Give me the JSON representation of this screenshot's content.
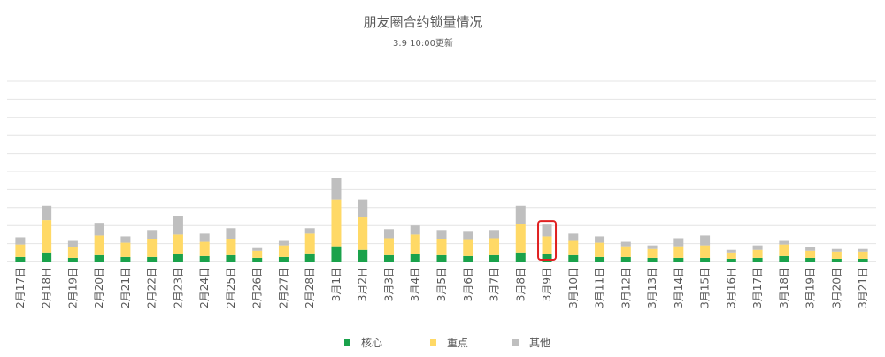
{
  "chart_data": {
    "type": "bar",
    "stacked": true,
    "title": "朋友圈合约锁量情况",
    "subtitle": "3.9 10:00更新",
    "categories": [
      "2月17日",
      "2月18日",
      "2月19日",
      "2月20日",
      "2月21日",
      "2月22日",
      "2月23日",
      "2月24日",
      "2月25日",
      "2月26日",
      "2月27日",
      "2月28日",
      "3月1日",
      "3月2日",
      "3月3日",
      "3月4日",
      "3月5日",
      "3月6日",
      "3月7日",
      "3月8日",
      "3月9日",
      "3月10日",
      "3月11日",
      "3月12日",
      "3月13日",
      "3月14日",
      "3月15日",
      "3月16日",
      "3月17日",
      "3月18日",
      "3月19日",
      "3月20日",
      "3月21日"
    ],
    "series": [
      {
        "name": "核心",
        "color": "#1aa24b",
        "values": [
          2.5,
          5,
          2,
          3.5,
          2.5,
          2.5,
          4,
          3,
          3.5,
          2,
          2.5,
          4.5,
          8.5,
          6.5,
          3.5,
          4,
          3.5,
          3,
          3.5,
          5,
          4,
          3.5,
          2.5,
          2.5,
          2,
          2,
          2,
          1.5,
          2,
          3,
          2,
          1.5,
          1.5
        ]
      },
      {
        "name": "重点",
        "color": "#ffd966",
        "values": [
          7,
          18,
          6,
          11,
          8,
          10,
          11,
          8,
          9,
          4,
          6.5,
          11,
          26,
          18,
          9.5,
          11,
          9,
          9,
          9.5,
          16,
          10,
          8,
          8,
          6,
          5,
          6.5,
          7,
          3.5,
          4.5,
          6.5,
          4,
          4,
          4
        ]
      },
      {
        "name": "其他",
        "color": "#bfbfbf",
        "values": [
          4,
          8,
          3.5,
          7,
          3.5,
          5,
          10,
          4.5,
          6,
          1.5,
          2.5,
          3,
          12,
          10,
          5,
          5,
          5,
          5,
          4.5,
          10,
          6.5,
          4,
          3.5,
          2.5,
          2,
          4.5,
          5.5,
          1.5,
          2.5,
          2,
          2,
          1.5,
          1.5
        ]
      }
    ],
    "ylim": [
      0,
      100
    ],
    "grid": true,
    "legend_position": "bottom",
    "highlighted_category": "3月9日",
    "highlight_color": "#e02020"
  }
}
